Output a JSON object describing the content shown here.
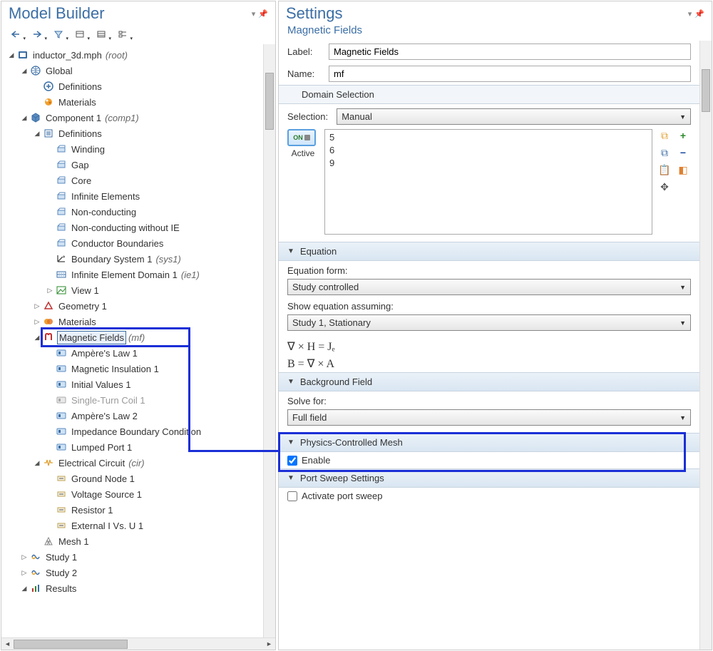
{
  "colors": {
    "accent": "#3b6ea5",
    "highlight": "#1a2fd6"
  },
  "modelBuilder": {
    "title": "Model Builder",
    "toolbar_icons": [
      "nav-back",
      "nav-fwd",
      "filter",
      "collapse",
      "expand",
      "tree-opts"
    ],
    "tree": [
      {
        "id": "root",
        "indent": 1,
        "toggle": "▲",
        "icon": "root",
        "label": "inductor_3d.mph",
        "tag": "(root)"
      },
      {
        "id": "global",
        "indent": 2,
        "toggle": "▲",
        "icon": "globe",
        "label": "Global"
      },
      {
        "id": "gdef",
        "indent": 3,
        "toggle": "",
        "icon": "defs",
        "label": "Definitions"
      },
      {
        "id": "gmat",
        "indent": 3,
        "toggle": "",
        "icon": "materials",
        "label": "Materials"
      },
      {
        "id": "comp1",
        "indent": 2,
        "toggle": "▲",
        "icon": "component",
        "label": "Component 1",
        "tag": "(comp1)"
      },
      {
        "id": "cdef",
        "indent": 3,
        "toggle": "▲",
        "icon": "defs2",
        "label": "Definitions"
      },
      {
        "id": "wind",
        "indent": 4,
        "toggle": "",
        "icon": "sel",
        "label": "Winding"
      },
      {
        "id": "gap",
        "indent": 4,
        "toggle": "",
        "icon": "sel",
        "label": "Gap"
      },
      {
        "id": "core",
        "indent": 4,
        "toggle": "",
        "icon": "sel",
        "label": "Core"
      },
      {
        "id": "ie",
        "indent": 4,
        "toggle": "",
        "icon": "sel",
        "label": "Infinite Elements"
      },
      {
        "id": "nc",
        "indent": 4,
        "toggle": "",
        "icon": "sel",
        "label": "Non-conducting"
      },
      {
        "id": "ncie",
        "indent": 4,
        "toggle": "",
        "icon": "sel",
        "label": "Non-conducting without IE"
      },
      {
        "id": "cb",
        "indent": 4,
        "toggle": "",
        "icon": "sel",
        "label": "Conductor Boundaries"
      },
      {
        "id": "bs",
        "indent": 4,
        "toggle": "",
        "icon": "boundsys",
        "label": "Boundary System 1",
        "tag": "(sys1)"
      },
      {
        "id": "ied",
        "indent": 4,
        "toggle": "",
        "icon": "iedom",
        "label": "Infinite Element Domain 1",
        "tag": "(ie1)"
      },
      {
        "id": "view",
        "indent": 4,
        "toggle": "▷",
        "icon": "view",
        "label": "View 1"
      },
      {
        "id": "geom",
        "indent": 3,
        "toggle": "▷",
        "icon": "geom",
        "label": "Geometry 1"
      },
      {
        "id": "cmat",
        "indent": 3,
        "toggle": "▷",
        "icon": "materials2",
        "label": "Materials"
      },
      {
        "id": "mf",
        "indent": 3,
        "toggle": "▲",
        "icon": "mf",
        "label": "Magnetic Fields",
        "tag": "(mf)",
        "selected": true
      },
      {
        "id": "al1",
        "indent": 4,
        "toggle": "",
        "icon": "phys",
        "label": "Ampère's Law 1"
      },
      {
        "id": "mi1",
        "indent": 4,
        "toggle": "",
        "icon": "phys",
        "label": "Magnetic Insulation 1"
      },
      {
        "id": "iv1",
        "indent": 4,
        "toggle": "",
        "icon": "phys",
        "label": "Initial Values 1"
      },
      {
        "id": "stc",
        "indent": 4,
        "toggle": "",
        "icon": "physd",
        "label": "Single-Turn Coil 1",
        "disabled": true
      },
      {
        "id": "al2",
        "indent": 4,
        "toggle": "",
        "icon": "phys",
        "label": "Ampère's Law 2"
      },
      {
        "id": "ibc",
        "indent": 4,
        "toggle": "",
        "icon": "phys",
        "label": "Impedance Boundary Condition"
      },
      {
        "id": "lp1",
        "indent": 4,
        "toggle": "",
        "icon": "phys",
        "label": "Lumped Port 1"
      },
      {
        "id": "cir",
        "indent": 3,
        "toggle": "▲",
        "icon": "circuit",
        "label": "Electrical Circuit",
        "tag": "(cir)"
      },
      {
        "id": "gn",
        "indent": 4,
        "toggle": "",
        "icon": "cnode",
        "label": "Ground Node 1"
      },
      {
        "id": "vs",
        "indent": 4,
        "toggle": "",
        "icon": "cnode",
        "label": "Voltage Source 1"
      },
      {
        "id": "r1",
        "indent": 4,
        "toggle": "",
        "icon": "cnode",
        "label": "Resistor 1"
      },
      {
        "id": "eiv",
        "indent": 4,
        "toggle": "",
        "icon": "cnode",
        "label": "External I Vs. U 1"
      },
      {
        "id": "mesh",
        "indent": 3,
        "toggle": "",
        "icon": "mesh",
        "label": "Mesh 1"
      },
      {
        "id": "st1",
        "indent": 2,
        "toggle": "▷",
        "icon": "study",
        "label": "Study 1"
      },
      {
        "id": "st2",
        "indent": 2,
        "toggle": "▷",
        "icon": "study",
        "label": "Study 2"
      },
      {
        "id": "res",
        "indent": 2,
        "toggle": "▲",
        "icon": "results",
        "label": "Results"
      }
    ]
  },
  "settings": {
    "title": "Settings",
    "subtitle": "Magnetic Fields",
    "label_field": {
      "label": "Label:",
      "value": "Magnetic Fields"
    },
    "name_field": {
      "label": "Name:",
      "value": "mf"
    },
    "domainSelection": {
      "header": "Domain Selection",
      "selection_label": "Selection:",
      "selection_value": "Manual",
      "active_state": "ON",
      "active_label": "Active",
      "items": [
        "5",
        "6",
        "9"
      ],
      "side_icons": [
        "copy-sel",
        "plus",
        "paste-sel",
        "minus",
        "clipboard",
        "toggle-sel",
        "zoom-sel",
        ""
      ]
    },
    "equation": {
      "header": "Equation",
      "form_label": "Equation form:",
      "form_value": "Study controlled",
      "assume_label": "Show equation assuming:",
      "assume_value": "Study 1, Stationary",
      "eq1": "∇ × H = Jₑ",
      "eq2": "B = ∇ × A"
    },
    "background": {
      "header": "Background Field",
      "solve_label": "Solve for:",
      "solve_value": "Full field"
    },
    "pcm": {
      "header": "Physics-Controlled Mesh",
      "enable_label": "Enable",
      "enable_checked": true
    },
    "portSweep": {
      "header": "Port Sweep Settings",
      "activate_label": "Activate port sweep",
      "activate_checked": false
    }
  }
}
